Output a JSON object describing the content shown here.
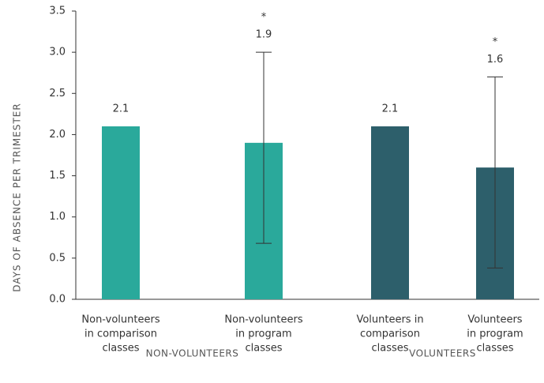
{
  "chart_data": {
    "type": "bar",
    "y_label": "DAYS OF ABSENCE PER TRIMESTER",
    "categories": [
      [
        "Non-volunteers",
        "in comparison",
        "classes"
      ],
      [
        "Non-volunteers",
        "in program",
        "classes"
      ],
      [
        "Volunteers in",
        "comparison",
        "classes"
      ],
      [
        "Volunteers",
        "in program",
        "classes"
      ]
    ],
    "values": [
      2.1,
      1.9,
      2.1,
      1.6
    ],
    "colors": [
      "#2aa99b",
      "#2aa99b",
      "#2d5f6b",
      "#2d5f6b"
    ],
    "error_range": [
      null,
      [
        0.68,
        3.0
      ],
      null,
      [
        0.38,
        2.7
      ]
    ],
    "annotations": [
      null,
      "*",
      null,
      "*"
    ],
    "groups": [
      {
        "label": "NON-VOLUNTEERS",
        "categories": [
          0,
          1
        ]
      },
      {
        "label": "VOLUNTEERS",
        "categories": [
          2,
          3
        ]
      }
    ],
    "ylim": [
      0,
      3.5
    ],
    "yticks": [
      {
        "value": 0,
        "label": "0.0"
      },
      {
        "value": 0.5,
        "label": "0.5"
      },
      {
        "value": 1,
        "label": "1.0"
      },
      {
        "value": 1.5,
        "label": "1.5"
      },
      {
        "value": 2,
        "label": "2.0"
      },
      {
        "value": 2.5,
        "label": "2.5"
      },
      {
        "value": 3,
        "label": "3.0"
      },
      {
        "value": 3.5,
        "label": "3.5"
      }
    ]
  }
}
